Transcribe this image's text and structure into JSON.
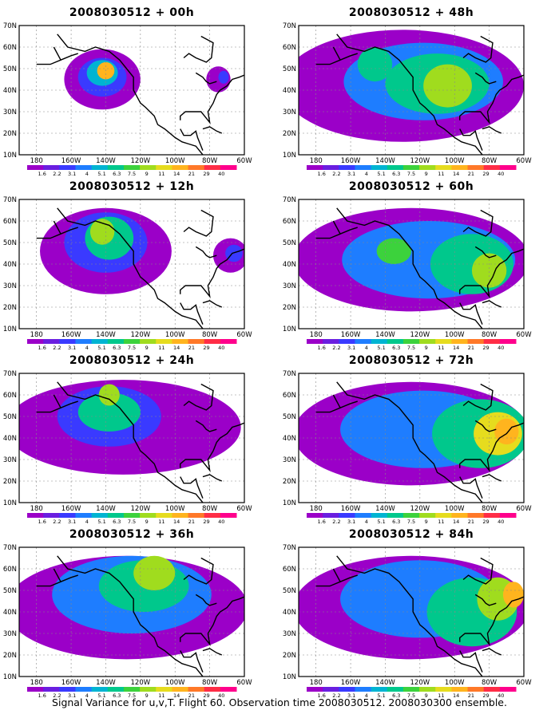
{
  "footer": "Signal Variance for u,v,T. Flight 60. Observation time 2008030512. 2008030300 ensemble.",
  "panels": [
    {
      "title": "2008030512 + 00h",
      "blobs": [
        {
          "cx": -142,
          "cy": 45,
          "rx": 22,
          "ry": 14,
          "level": 0
        },
        {
          "cx": -142,
          "cy": 46,
          "rx": 14,
          "ry": 9,
          "level": 2
        },
        {
          "cx": -142,
          "cy": 48,
          "rx": 9,
          "ry": 6,
          "level": 4
        },
        {
          "cx": -140,
          "cy": 49,
          "rx": 5,
          "ry": 4,
          "level": 9
        },
        {
          "cx": -75,
          "cy": 45,
          "rx": 7,
          "ry": 6,
          "level": 0
        },
        {
          "cx": -72,
          "cy": 46,
          "rx": 3,
          "ry": 3,
          "level": 2
        }
      ]
    },
    {
      "title": "2008030512 + 48h",
      "blobs": [
        {
          "cx": -130,
          "cy": 42,
          "rx": 70,
          "ry": 26,
          "level": 0
        },
        {
          "cx": -118,
          "cy": 44,
          "rx": 46,
          "ry": 18,
          "level": 3
        },
        {
          "cx": -110,
          "cy": 43,
          "rx": 30,
          "ry": 14,
          "level": 5
        },
        {
          "cx": -104,
          "cy": 42,
          "rx": 14,
          "ry": 10,
          "level": 7
        },
        {
          "cx": -146,
          "cy": 52,
          "rx": 10,
          "ry": 8,
          "level": 5
        }
      ]
    },
    {
      "title": "2008030512 + 12h",
      "blobs": [
        {
          "cx": -140,
          "cy": 46,
          "rx": 38,
          "ry": 20,
          "level": 0
        },
        {
          "cx": -140,
          "cy": 50,
          "rx": 24,
          "ry": 14,
          "level": 2
        },
        {
          "cx": -138,
          "cy": 52,
          "rx": 14,
          "ry": 10,
          "level": 5
        },
        {
          "cx": -142,
          "cy": 55,
          "rx": 7,
          "ry": 6,
          "level": 7
        },
        {
          "cx": -68,
          "cy": 44,
          "rx": 10,
          "ry": 8,
          "level": 0
        },
        {
          "cx": -66,
          "cy": 45,
          "rx": 5,
          "ry": 4,
          "level": 2
        }
      ]
    },
    {
      "title": "2008030512 + 60h",
      "blobs": [
        {
          "cx": -125,
          "cy": 42,
          "rx": 68,
          "ry": 24,
          "level": 0
        },
        {
          "cx": -115,
          "cy": 42,
          "rx": 50,
          "ry": 18,
          "level": 3
        },
        {
          "cx": -90,
          "cy": 40,
          "rx": 24,
          "ry": 14,
          "level": 5
        },
        {
          "cx": -80,
          "cy": 37,
          "rx": 10,
          "ry": 8,
          "level": 7
        },
        {
          "cx": -135,
          "cy": 46,
          "rx": 10,
          "ry": 6,
          "level": 6
        }
      ]
    },
    {
      "title": "2008030512 + 24h",
      "blobs": [
        {
          "cx": -130,
          "cy": 45,
          "rx": 68,
          "ry": 22,
          "level": 0
        },
        {
          "cx": -138,
          "cy": 50,
          "rx": 30,
          "ry": 14,
          "level": 2
        },
        {
          "cx": -138,
          "cy": 52,
          "rx": 18,
          "ry": 9,
          "level": 5
        },
        {
          "cx": -138,
          "cy": 60,
          "rx": 6,
          "ry": 5,
          "level": 7
        }
      ]
    },
    {
      "title": "2008030512 + 72h",
      "blobs": [
        {
          "cx": -125,
          "cy": 42,
          "rx": 68,
          "ry": 24,
          "level": 0
        },
        {
          "cx": -118,
          "cy": 44,
          "rx": 48,
          "ry": 18,
          "level": 3
        },
        {
          "cx": -85,
          "cy": 42,
          "rx": 28,
          "ry": 16,
          "level": 5
        },
        {
          "cx": -75,
          "cy": 42,
          "rx": 14,
          "ry": 10,
          "level": 8
        },
        {
          "cx": -70,
          "cy": 43,
          "rx": 7,
          "ry": 6,
          "level": 9
        }
      ]
    },
    {
      "title": "2008030512 + 36h",
      "blobs": [
        {
          "cx": -128,
          "cy": 42,
          "rx": 70,
          "ry": 24,
          "level": 0
        },
        {
          "cx": -125,
          "cy": 48,
          "rx": 46,
          "ry": 18,
          "level": 3
        },
        {
          "cx": -118,
          "cy": 52,
          "rx": 26,
          "ry": 12,
          "level": 5
        },
        {
          "cx": -112,
          "cy": 58,
          "rx": 12,
          "ry": 8,
          "level": 7
        }
      ]
    },
    {
      "title": "2008030512 + 84h",
      "blobs": [
        {
          "cx": -125,
          "cy": 42,
          "rx": 68,
          "ry": 24,
          "level": 0
        },
        {
          "cx": -120,
          "cy": 46,
          "rx": 46,
          "ry": 18,
          "level": 3
        },
        {
          "cx": -90,
          "cy": 40,
          "rx": 26,
          "ry": 16,
          "level": 5
        },
        {
          "cx": -75,
          "cy": 46,
          "rx": 12,
          "ry": 10,
          "level": 7
        },
        {
          "cx": -66,
          "cy": 48,
          "rx": 6,
          "ry": 6,
          "level": 9
        }
      ]
    }
  ],
  "map_frame": {
    "lon_range": [
      -190,
      -60
    ],
    "lat_range": [
      10,
      70
    ],
    "lat_labels": [
      "10N",
      "20N",
      "30N",
      "40N",
      "50N",
      "60N",
      "70N"
    ],
    "lon_labels": [
      "180",
      "160W",
      "140W",
      "120W",
      "100W",
      "80W",
      "60W"
    ]
  },
  "colorbar": {
    "labels": [
      "1.6",
      "2.2",
      "3.1",
      "4",
      "5.1",
      "6.3",
      "7.5",
      "9",
      "11",
      "14",
      "21",
      "29",
      "40"
    ],
    "colors": [
      "#9b00c8",
      "#6a1ee0",
      "#3a3aff",
      "#1e7dff",
      "#00b4d2",
      "#00c88c",
      "#3cd23c",
      "#a0dc1e",
      "#e6dc1e",
      "#ffb41e",
      "#ff7828",
      "#ff2d46",
      "#ff008c"
    ]
  }
}
